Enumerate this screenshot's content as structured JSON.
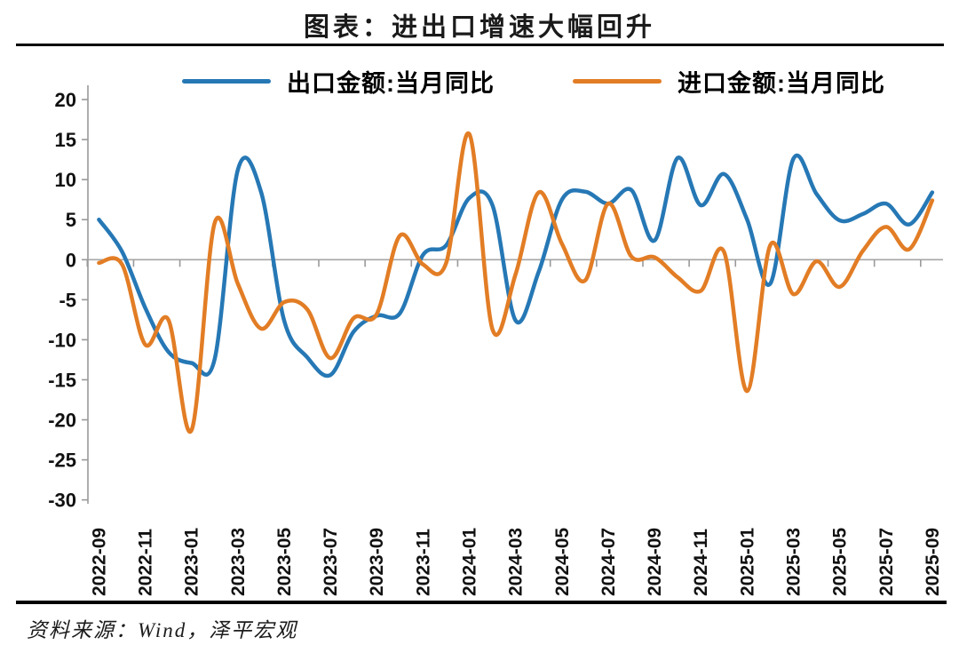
{
  "title": "图表：进出口增速大幅回升",
  "legend": {
    "items": [
      {
        "label": "出口金额:当月同比",
        "color": "#2678B5"
      },
      {
        "label": "进口金额:当月同比",
        "color": "#E27D25"
      }
    ]
  },
  "source_note": "资料来源：Wind，泽平宏观",
  "chart_data": {
    "type": "line",
    "line_style": "smooth",
    "grid": false,
    "legend_position": "top",
    "ylim": [
      -30,
      20
    ],
    "ytick_step": 5,
    "y_ticks": [
      20,
      15,
      10,
      5,
      0,
      -5,
      -10,
      -15,
      -20,
      -25,
      -30
    ],
    "x": [
      "2022-09",
      "2022-10",
      "2022-11",
      "2022-12",
      "2023-01",
      "2023-02",
      "2023-03",
      "2023-04",
      "2023-05",
      "2023-06",
      "2023-07",
      "2023-08",
      "2023-09",
      "2023-10",
      "2023-11",
      "2023-12",
      "2024-01",
      "2024-02",
      "2024-03",
      "2024-04",
      "2024-05",
      "2024-06",
      "2024-07",
      "2024-08",
      "2024-09",
      "2024-10",
      "2024-11",
      "2024-12",
      "2025-01",
      "2025-02",
      "2025-03",
      "2025-04",
      "2025-05",
      "2025-06",
      "2025-07",
      "2025-08",
      "2025-09"
    ],
    "x_tick_labels": [
      "2022-09",
      "2022-11",
      "2023-01",
      "2023-03",
      "2023-05",
      "2023-07",
      "2023-09",
      "2023-11",
      "2024-01",
      "2024-03",
      "2024-05",
      "2024-07",
      "2024-09",
      "2024-11",
      "2025-01",
      "2025-03",
      "2025-05",
      "2025-07",
      "2025-09"
    ],
    "series": [
      {
        "name": "出口金额:当月同比",
        "color": "#2678B5",
        "values": [
          5.0,
          1.0,
          -6.0,
          -11.5,
          -12.9,
          -12.4,
          11.2,
          8.5,
          -7.6,
          -12.2,
          -14.4,
          -9.0,
          -7.0,
          -6.7,
          0.6,
          1.8,
          7.7,
          6.8,
          -7.6,
          -1.5,
          7.5,
          8.5,
          7.0,
          8.7,
          2.4,
          12.7,
          6.8,
          10.7,
          5.0,
          -3.0,
          12.6,
          8.2,
          4.9,
          5.7,
          7.0,
          4.4,
          8.4
        ]
      },
      {
        "name": "进口金额:当月同比",
        "color": "#E27D25",
        "values": [
          -0.4,
          -0.6,
          -10.6,
          -7.5,
          -21.3,
          4.6,
          -3.0,
          -8.6,
          -5.3,
          -6.2,
          -12.3,
          -7.3,
          -6.8,
          3.0,
          -0.6,
          -0.4,
          15.7,
          -8.7,
          -1.8,
          8.4,
          2.0,
          -2.6,
          7.0,
          0.4,
          0.3,
          -2.2,
          -3.9,
          1.0,
          -16.4,
          1.8,
          -4.3,
          -0.2,
          -3.4,
          1.1,
          4.1,
          1.3,
          7.4
        ]
      }
    ]
  }
}
